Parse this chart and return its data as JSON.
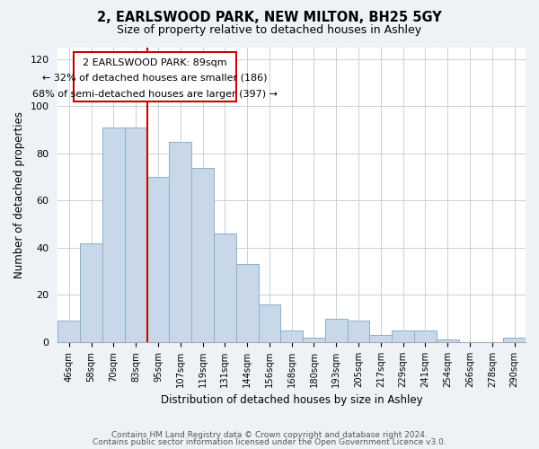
{
  "title": "2, EARLSWOOD PARK, NEW MILTON, BH25 5GY",
  "subtitle": "Size of property relative to detached houses in Ashley",
  "xlabel": "Distribution of detached houses by size in Ashley",
  "ylabel": "Number of detached properties",
  "bar_color": "#c8d8e8",
  "bar_edge_color": "#8ab0cc",
  "categories": [
    "46sqm",
    "58sqm",
    "70sqm",
    "83sqm",
    "95sqm",
    "107sqm",
    "119sqm",
    "131sqm",
    "144sqm",
    "156sqm",
    "168sqm",
    "180sqm",
    "193sqm",
    "205sqm",
    "217sqm",
    "229sqm",
    "241sqm",
    "254sqm",
    "266sqm",
    "278sqm",
    "290sqm"
  ],
  "values": [
    9,
    42,
    91,
    91,
    70,
    85,
    74,
    46,
    33,
    16,
    5,
    2,
    10,
    9,
    3,
    5,
    5,
    1,
    0,
    0,
    2
  ],
  "ylim": [
    0,
    125
  ],
  "yticks": [
    0,
    20,
    40,
    60,
    80,
    100,
    120
  ],
  "property_line_label": "2 EARLSWOOD PARK: 89sqm",
  "annotation_line1": "← 32% of detached houses are smaller (186)",
  "annotation_line2": "68% of semi-detached houses are larger (397) →",
  "box_color": "#ffffff",
  "box_edge_color": "#cc0000",
  "vline_color": "#cc0000",
  "footer1": "Contains HM Land Registry data © Crown copyright and database right 2024.",
  "footer2": "Contains public sector information licensed under the Open Government Licence v3.0.",
  "background_color": "#eef2f7",
  "plot_background": "#ffffff",
  "grid_color": "#c8d0dc"
}
